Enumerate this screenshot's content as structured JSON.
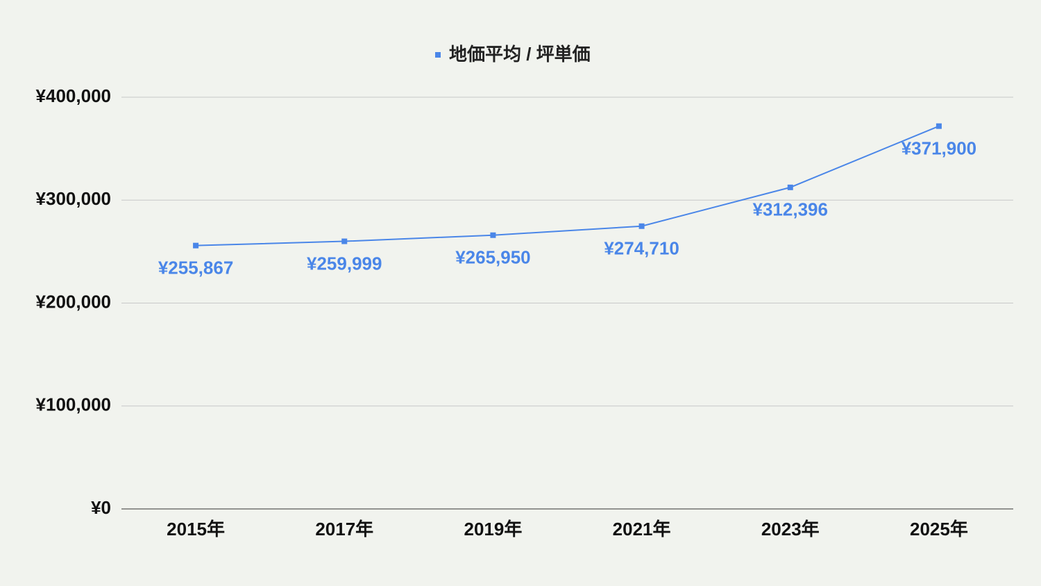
{
  "chart_data": {
    "type": "line",
    "categories": [
      "2015年",
      "2017年",
      "2019年",
      "2021年",
      "2023年",
      "2025年"
    ],
    "series": [
      {
        "name": "地価平均 / 坪単価",
        "color": "#4a86e8",
        "values": [
          255867,
          259999,
          265950,
          274710,
          312396,
          371900
        ],
        "value_labels": [
          "¥255,867",
          "¥259,999",
          "¥265,950",
          "¥274,710",
          "¥312,396",
          "¥371,900"
        ]
      }
    ],
    "ylim": [
      0,
      400000
    ],
    "yticks": [
      {
        "value": 0,
        "label": "¥0"
      },
      {
        "value": 100000,
        "label": "¥100,000"
      },
      {
        "value": 200000,
        "label": "¥200,000"
      },
      {
        "value": 300000,
        "label": "¥300,000"
      },
      {
        "value": 400000,
        "label": "¥400,000"
      }
    ],
    "grid": true,
    "legend": "top"
  }
}
